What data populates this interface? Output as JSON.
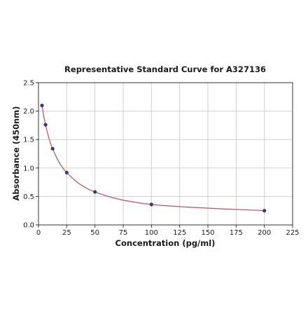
{
  "chart_data": {
    "type": "scatter",
    "title": "Representative Standard Curve for A327136",
    "xlabel": "Concentration (pg/ml)",
    "ylabel": "Absorbance (450nm)",
    "xlim": [
      0,
      225
    ],
    "ylim": [
      0,
      2.5
    ],
    "xticks": [
      "0",
      "25",
      "50",
      "75",
      "100",
      "125",
      "150",
      "175",
      "200",
      "225"
    ],
    "yticks": [
      "0.0",
      "0.5",
      "1.0",
      "1.5",
      "2.0",
      "2.5"
    ],
    "grid": true,
    "legend": "none",
    "point_color": "#3b3b6b",
    "curve_color": "#b5526a",
    "series": [
      {
        "x": [
          3.125,
          6.25,
          12.5,
          25,
          50,
          100,
          200
        ],
        "y": [
          2.1,
          1.76,
          1.34,
          0.92,
          0.58,
          0.36,
          0.25
        ]
      }
    ]
  }
}
